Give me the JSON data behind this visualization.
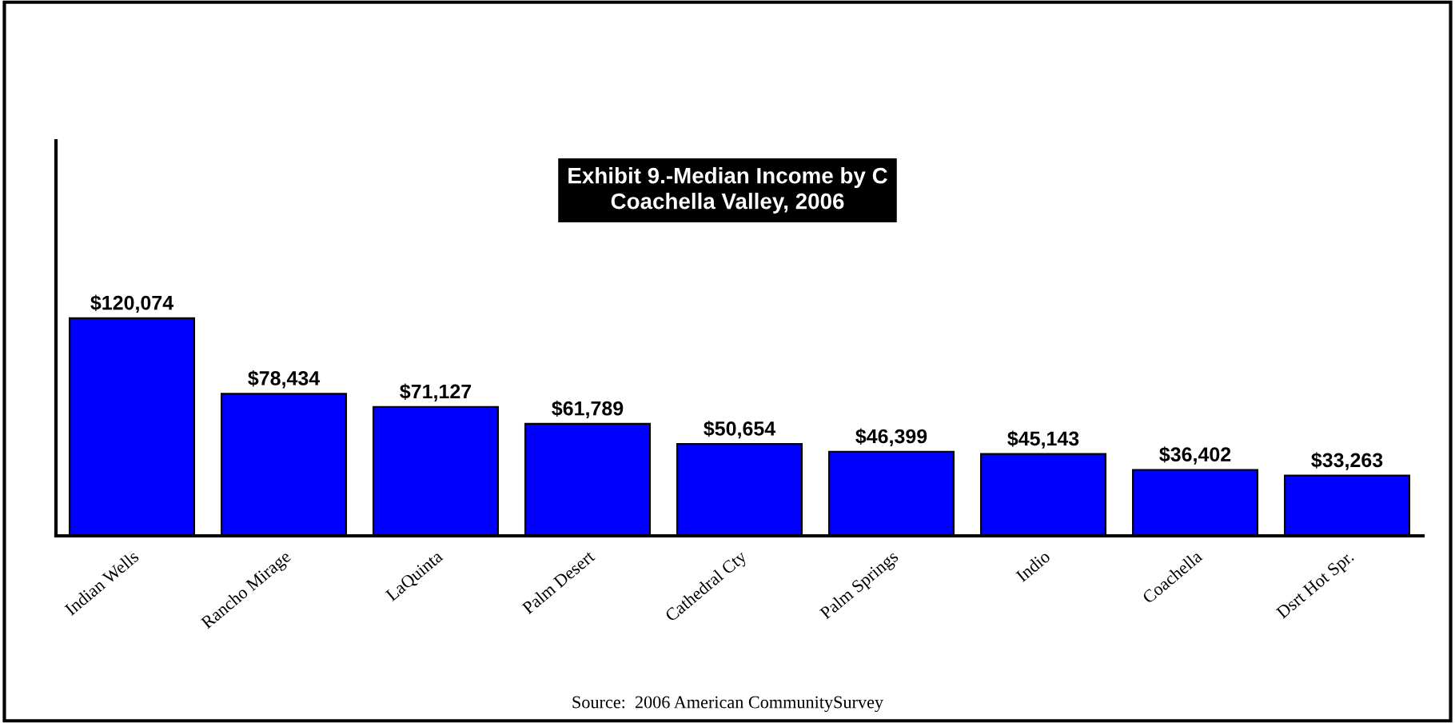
{
  "chart_data": {
    "type": "bar",
    "title": "Exhibit 9.-Median Income by C\nCoachella Valley, 2006",
    "categories": [
      "Indian Wells",
      "Rancho Mirage",
      "LaQuinta",
      "Palm Desert",
      "Cathedral Cty",
      "Palm Springs",
      "Indio",
      "Coachella",
      "Dsrt Hot Spr."
    ],
    "values": [
      120074,
      78434,
      71127,
      61789,
      50654,
      46399,
      45143,
      36402,
      33263
    ],
    "value_labels": [
      "$120,074",
      "$78,434",
      "$71,127",
      "$61,789",
      "$50,654",
      "$46,399",
      "$45,143",
      "$36,402",
      "$33,263"
    ],
    "color": "#0000ff",
    "ylim": [
      0,
      218000
    ],
    "tick_labels": "x",
    "grid": false,
    "legend": false,
    "annotations": [
      "Source:  2006 American CommunitySurvey"
    ]
  }
}
